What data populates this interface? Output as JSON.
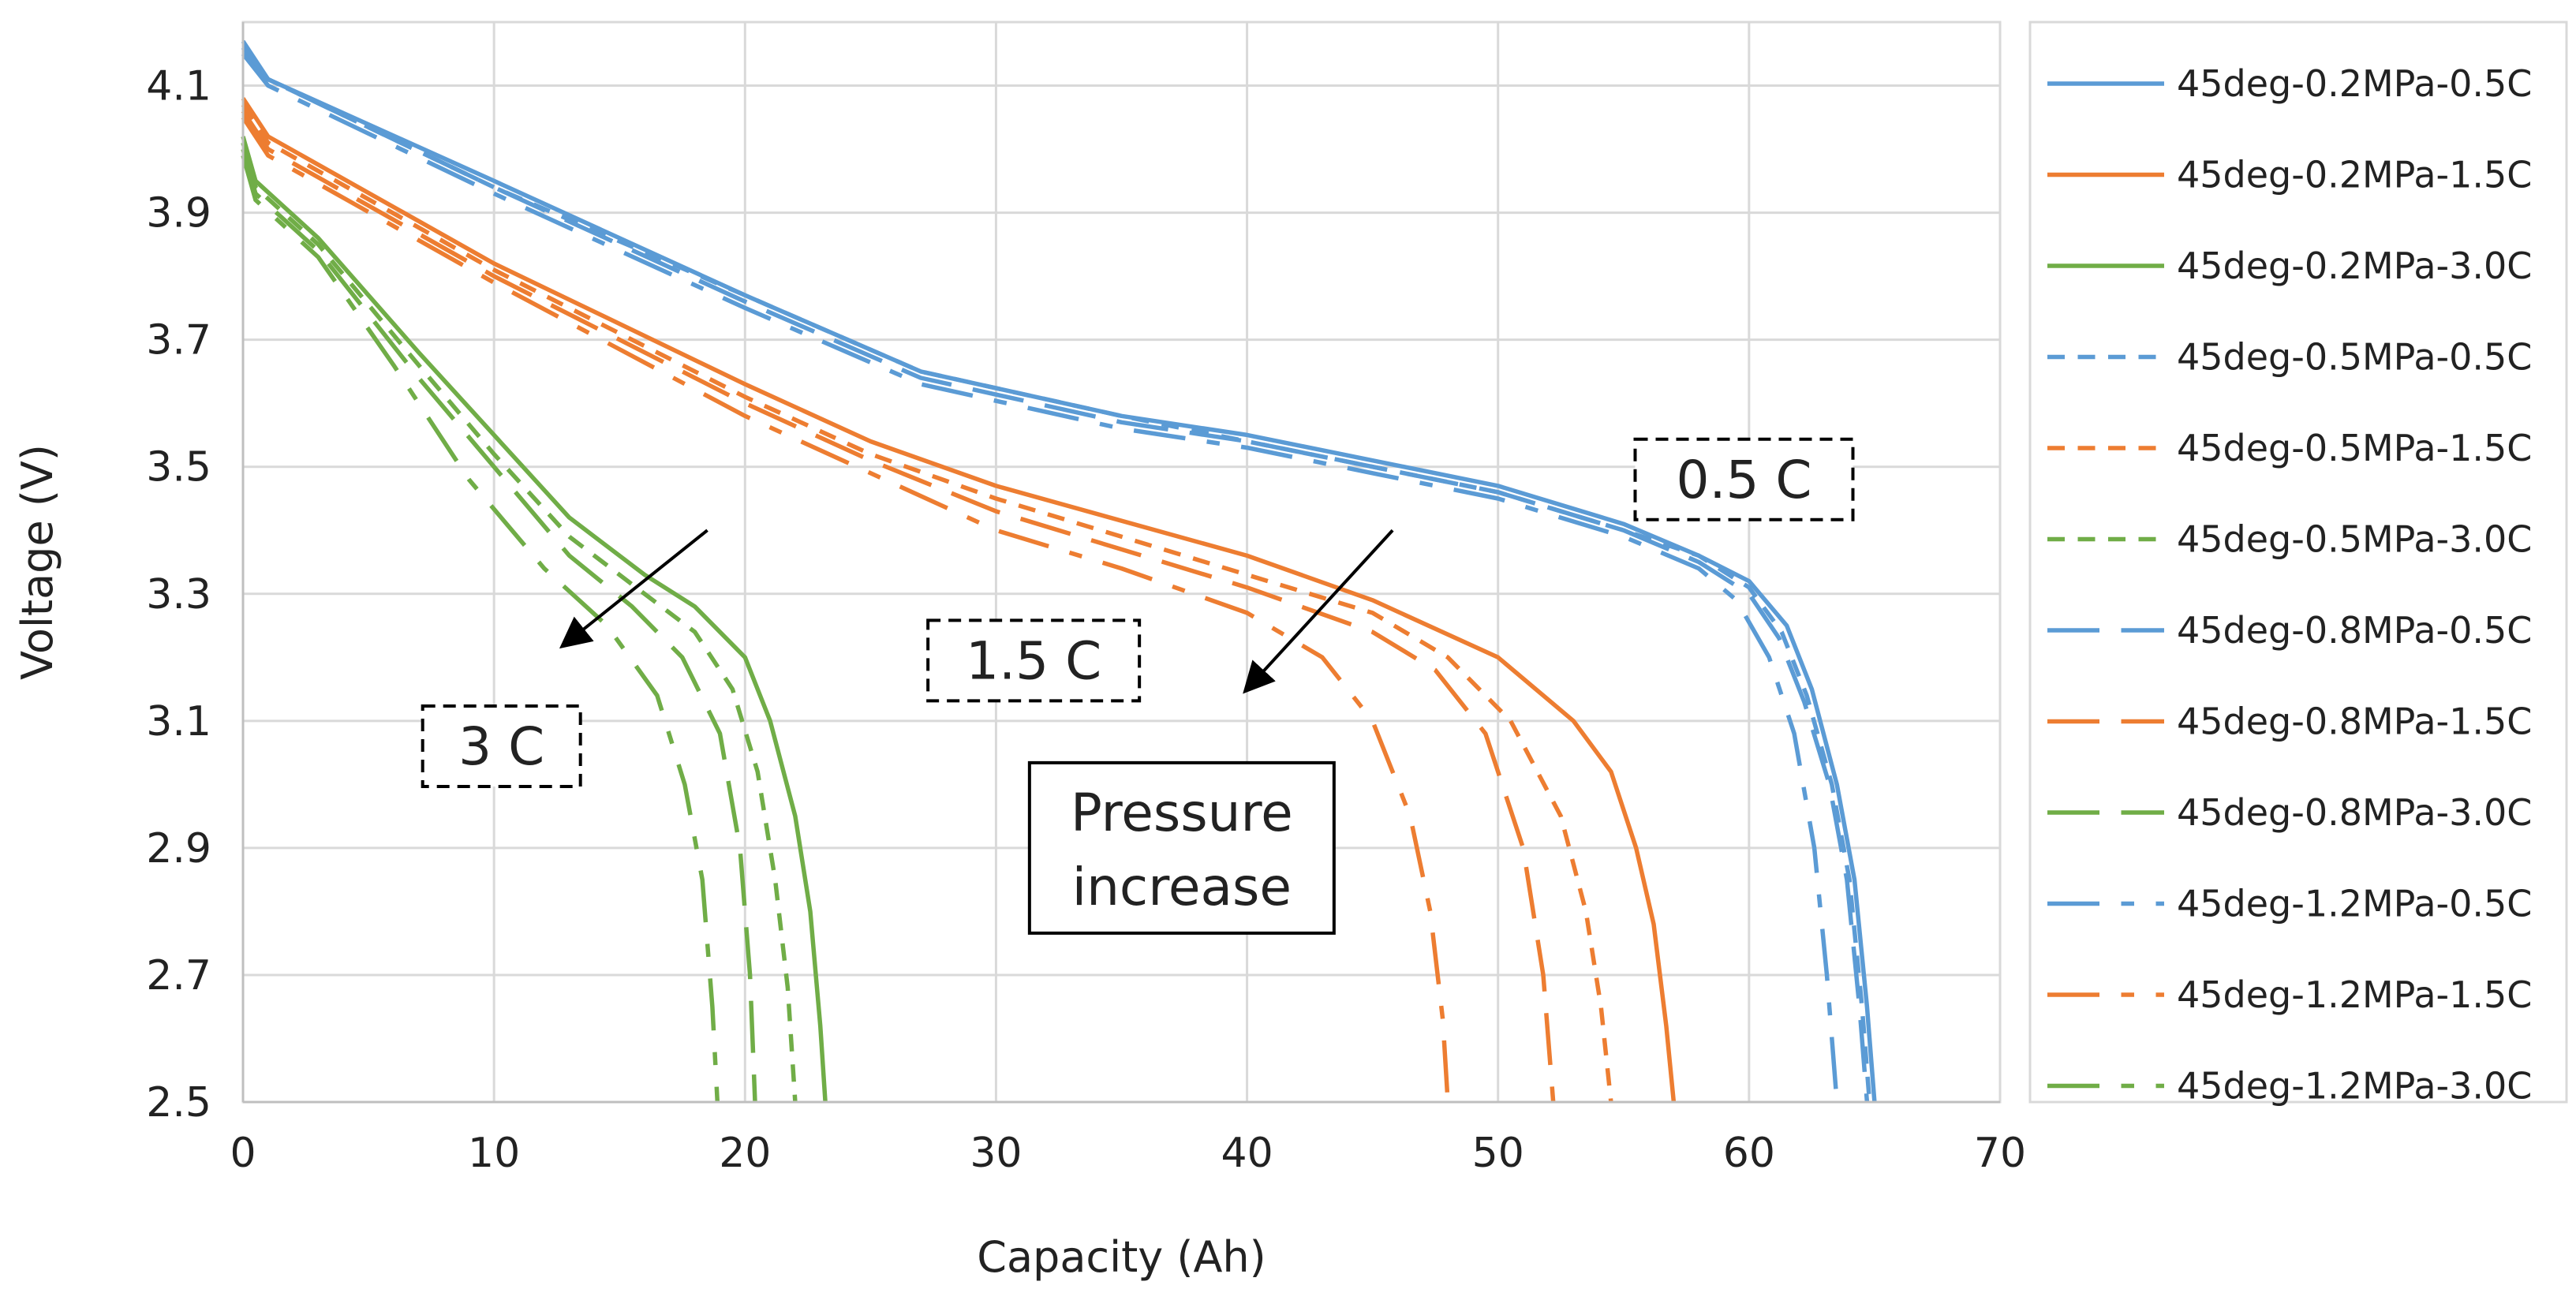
{
  "chart_data": {
    "type": "line",
    "title": "",
    "xlabel": "Capacity (Ah)",
    "ylabel": "Voltage (V)",
    "xlim": [
      0,
      70
    ],
    "ylim": [
      2.5,
      4.2
    ],
    "xticks": [
      0,
      10,
      20,
      30,
      40,
      50,
      60,
      70
    ],
    "yticks": [
      2.5,
      2.7,
      2.9,
      3.1,
      3.3,
      3.5,
      3.7,
      3.9,
      4.1
    ],
    "grid": true,
    "legend_position": "right",
    "colors": {
      "0.5C": "#5B9BD5",
      "1.5C": "#ED7D31",
      "3.0C": "#70AD47"
    },
    "series": [
      {
        "name": "45deg-0.2MPa-0.5C",
        "rate": "0.5C",
        "dash": "solid",
        "x": [
          0,
          1,
          10,
          20,
          27,
          35,
          40,
          45,
          50,
          55,
          58,
          60,
          61.5,
          62.5,
          63.5,
          64.2,
          64.7,
          65
        ],
        "y": [
          4.17,
          4.11,
          3.95,
          3.77,
          3.65,
          3.58,
          3.55,
          3.51,
          3.47,
          3.41,
          3.36,
          3.32,
          3.25,
          3.15,
          3.0,
          2.85,
          2.65,
          2.5
        ]
      },
      {
        "name": "45deg-0.2MPa-1.5C",
        "rate": "1.5C",
        "dash": "solid",
        "x": [
          0,
          1,
          10,
          20,
          25,
          30,
          40,
          45,
          50,
          53,
          54.5,
          55.5,
          56.2,
          56.7,
          57
        ],
        "y": [
          4.08,
          4.02,
          3.82,
          3.63,
          3.54,
          3.47,
          3.36,
          3.29,
          3.2,
          3.1,
          3.02,
          2.9,
          2.78,
          2.62,
          2.5
        ]
      },
      {
        "name": "45deg-0.2MPa-3.0C",
        "rate": "3.0C",
        "dash": "solid",
        "x": [
          0,
          0.5,
          3,
          7,
          10,
          13,
          16,
          18,
          20,
          21,
          22,
          22.6,
          23,
          23.2
        ],
        "y": [
          4.02,
          3.95,
          3.86,
          3.68,
          3.55,
          3.42,
          3.33,
          3.28,
          3.2,
          3.1,
          2.95,
          2.8,
          2.62,
          2.5
        ]
      },
      {
        "name": "45deg-0.5MPa-0.5C",
        "rate": "0.5C",
        "dash": "4 3",
        "x": [
          0,
          1,
          10,
          20,
          27,
          35,
          40,
          45,
          50,
          55,
          58,
          60,
          61.3,
          62.3,
          63.3,
          64,
          64.5,
          64.8
        ],
        "y": [
          4.16,
          4.11,
          3.94,
          3.77,
          3.65,
          3.58,
          3.54,
          3.5,
          3.46,
          3.4,
          3.36,
          3.31,
          3.24,
          3.14,
          3.0,
          2.85,
          2.65,
          2.5
        ]
      },
      {
        "name": "45deg-0.5MPa-1.5C",
        "rate": "1.5C",
        "dash": "4 3",
        "x": [
          0,
          1,
          10,
          20,
          25,
          30,
          40,
          45,
          48,
          50.5,
          52.5,
          53.5,
          54.1,
          54.5
        ],
        "y": [
          4.07,
          4.01,
          3.81,
          3.61,
          3.52,
          3.45,
          3.33,
          3.27,
          3.2,
          3.1,
          2.95,
          2.8,
          2.65,
          2.5
        ]
      },
      {
        "name": "45deg-0.5MPa-3.0C",
        "rate": "3.0C",
        "dash": "4 3",
        "x": [
          0,
          0.5,
          3,
          7,
          10,
          13,
          16,
          18,
          19.5,
          20.5,
          21.2,
          21.7,
          22
        ],
        "y": [
          4.01,
          3.94,
          3.85,
          3.66,
          3.52,
          3.39,
          3.3,
          3.24,
          3.15,
          3.02,
          2.85,
          2.68,
          2.5
        ]
      },
      {
        "name": "45deg-0.8MPa-0.5C",
        "rate": "0.5C",
        "dash": "12 5",
        "x": [
          0,
          1,
          10,
          20,
          27,
          35,
          40,
          45,
          50,
          55,
          58,
          60,
          61.2,
          62.2,
          63.2,
          63.9,
          64.4,
          64.7
        ],
        "y": [
          4.16,
          4.11,
          3.94,
          3.76,
          3.64,
          3.57,
          3.54,
          3.5,
          3.46,
          3.4,
          3.35,
          3.3,
          3.23,
          3.13,
          3.0,
          2.85,
          2.65,
          2.5
        ]
      },
      {
        "name": "45deg-0.8MPa-1.5C",
        "rate": "1.5C",
        "dash": "12 5",
        "x": [
          0,
          1,
          10,
          20,
          25,
          30,
          40,
          45,
          47.5,
          49.5,
          51,
          51.8,
          52.2
        ],
        "y": [
          4.06,
          4.0,
          3.8,
          3.6,
          3.51,
          3.43,
          3.31,
          3.24,
          3.18,
          3.08,
          2.9,
          2.7,
          2.5
        ]
      },
      {
        "name": "45deg-0.8MPa-3.0C",
        "rate": "3.0C",
        "dash": "12 5",
        "x": [
          0,
          0.5,
          3,
          7,
          10,
          13,
          15.5,
          17.5,
          19,
          19.8,
          20.2,
          20.4
        ],
        "y": [
          4.0,
          3.93,
          3.84,
          3.64,
          3.5,
          3.36,
          3.28,
          3.2,
          3.08,
          2.9,
          2.7,
          2.5
        ]
      },
      {
        "name": "45deg-1.2MPa-0.5C",
        "rate": "0.5C",
        "dash": "12 5 3 5",
        "x": [
          0,
          1,
          10,
          20,
          27,
          35,
          40,
          45,
          50,
          55,
          58,
          59.5,
          60.8,
          61.8,
          62.6,
          63.1,
          63.5
        ],
        "y": [
          4.15,
          4.1,
          3.93,
          3.75,
          3.63,
          3.56,
          3.53,
          3.49,
          3.45,
          3.39,
          3.34,
          3.29,
          3.2,
          3.08,
          2.9,
          2.7,
          2.5
        ]
      },
      {
        "name": "45deg-1.2MPa-1.5C",
        "rate": "1.5C",
        "dash": "12 5 3 5",
        "x": [
          0,
          1,
          10,
          20,
          25,
          30,
          35,
          40,
          43,
          45,
          46.5,
          47.3,
          47.8,
          48
        ],
        "y": [
          4.05,
          3.99,
          3.79,
          3.58,
          3.49,
          3.4,
          3.34,
          3.27,
          3.2,
          3.1,
          2.95,
          2.8,
          2.63,
          2.5
        ]
      },
      {
        "name": "45deg-1.2MPa-3.0C",
        "rate": "3.0C",
        "dash": "12 5 3 5",
        "x": [
          0,
          0.5,
          3,
          6,
          9,
          12,
          14.5,
          16.5,
          17.6,
          18.3,
          18.7,
          18.9
        ],
        "y": [
          3.99,
          3.92,
          3.83,
          3.66,
          3.48,
          3.34,
          3.25,
          3.14,
          3.0,
          2.85,
          2.65,
          2.5
        ]
      }
    ],
    "annotations": {
      "label_05c": "0.5 C",
      "label_15c": "1.5 C",
      "label_3c": "3 C",
      "pressure_line1": "Pressure",
      "pressure_line2": "increase"
    },
    "annotation_anchors": {
      "label_05c": [
        59.8,
        3.48
      ],
      "label_15c": [
        31.5,
        3.195
      ],
      "label_3c": [
        10.3,
        3.06
      ],
      "pressure": [
        37.4,
        2.9
      ],
      "arrow_3c": {
        "from": [
          18.5,
          3.4
        ],
        "to": [
          12.8,
          3.22
        ]
      },
      "arrow_15c": {
        "from": [
          45.8,
          3.4
        ],
        "to": [
          40,
          3.15
        ]
      }
    }
  }
}
